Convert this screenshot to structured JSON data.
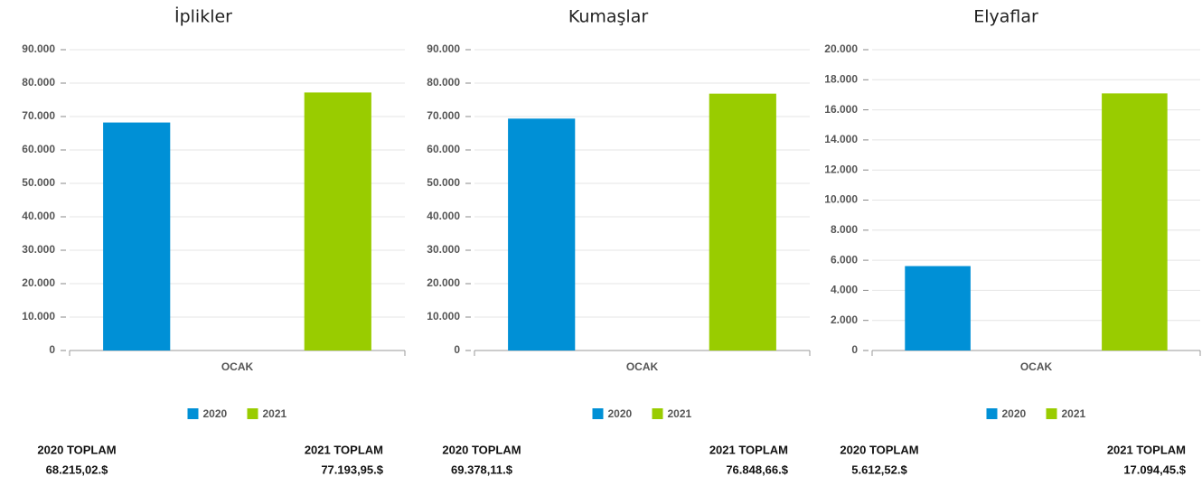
{
  "chart_data": [
    {
      "type": "bar",
      "title": "İplikler",
      "categories": [
        "OCAK"
      ],
      "series": [
        {
          "name": "2020",
          "color": "#0090d6",
          "values": [
            68215.02
          ],
          "value_labels": [
            "68.215,02.$"
          ]
        },
        {
          "name": "2021",
          "color": "#99cc00",
          "values": [
            77193.95
          ],
          "value_labels": [
            "77.193,95.$"
          ]
        }
      ],
      "total_labels": [
        "2020 TOPLAM",
        "2021 TOPLAM"
      ],
      "ylim": [
        0,
        90000
      ],
      "yticks": [
        0,
        {
          "value": 10000,
          "label": "10.000"
        },
        {
          "value": 20000,
          "label": "20.000"
        },
        {
          "value": 30000,
          "label": "30.000"
        },
        {
          "value": 40000,
          "label": "40.000"
        },
        {
          "value": 50000,
          "label": "50.000"
        },
        {
          "value": 60000,
          "label": "60.000"
        },
        {
          "value": 70000,
          "label": "70.000"
        },
        {
          "value": 80000,
          "label": "80.000"
        },
        {
          "value": 90000,
          "label": "90.000"
        }
      ],
      "grid": true
    },
    {
      "type": "bar",
      "title": "Kumaşlar",
      "categories": [
        "OCAK"
      ],
      "series": [
        {
          "name": "2020",
          "color": "#0090d6",
          "values": [
            69378.11
          ],
          "value_labels": [
            "69.378,11.$"
          ]
        },
        {
          "name": "2021",
          "color": "#99cc00",
          "values": [
            76848.66
          ],
          "value_labels": [
            "76.848,66.$"
          ]
        }
      ],
      "total_labels": [
        "2020 TOPLAM",
        "2021 TOPLAM"
      ],
      "ylim": [
        0,
        90000
      ],
      "yticks": [
        0,
        {
          "value": 10000,
          "label": "10.000"
        },
        {
          "value": 20000,
          "label": "20.000"
        },
        {
          "value": 30000,
          "label": "30.000"
        },
        {
          "value": 40000,
          "label": "40.000"
        },
        {
          "value": 50000,
          "label": "50.000"
        },
        {
          "value": 60000,
          "label": "60.000"
        },
        {
          "value": 70000,
          "label": "70.000"
        },
        {
          "value": 80000,
          "label": "80.000"
        },
        {
          "value": 90000,
          "label": "90.000"
        }
      ],
      "grid": true
    },
    {
      "type": "bar",
      "title": "Elyaflar",
      "categories": [
        "OCAK"
      ],
      "series": [
        {
          "name": "2020",
          "color": "#0090d6",
          "values": [
            5612.52
          ],
          "value_labels": [
            "5.612,52.$"
          ]
        },
        {
          "name": "2021",
          "color": "#99cc00",
          "values": [
            17094.45
          ],
          "value_labels": [
            "17.094,45.$"
          ]
        }
      ],
      "total_labels": [
        "2020 TOPLAM",
        "2021 TOPLAM"
      ],
      "ylim": [
        0,
        20000
      ],
      "yticks": [
        0,
        {
          "value": 2000,
          "label": "2.000"
        },
        {
          "value": 4000,
          "label": "4.000"
        },
        {
          "value": 6000,
          "label": "6.000"
        },
        {
          "value": 8000,
          "label": "8.000"
        },
        {
          "value": 10000,
          "label": "10.000"
        },
        {
          "value": 12000,
          "label": "12.000"
        },
        {
          "value": 14000,
          "label": "14.000"
        },
        {
          "value": 16000,
          "label": "16.000"
        },
        {
          "value": 18000,
          "label": "18.000"
        },
        {
          "value": 20000,
          "label": "20.000"
        }
      ],
      "grid": true
    }
  ]
}
